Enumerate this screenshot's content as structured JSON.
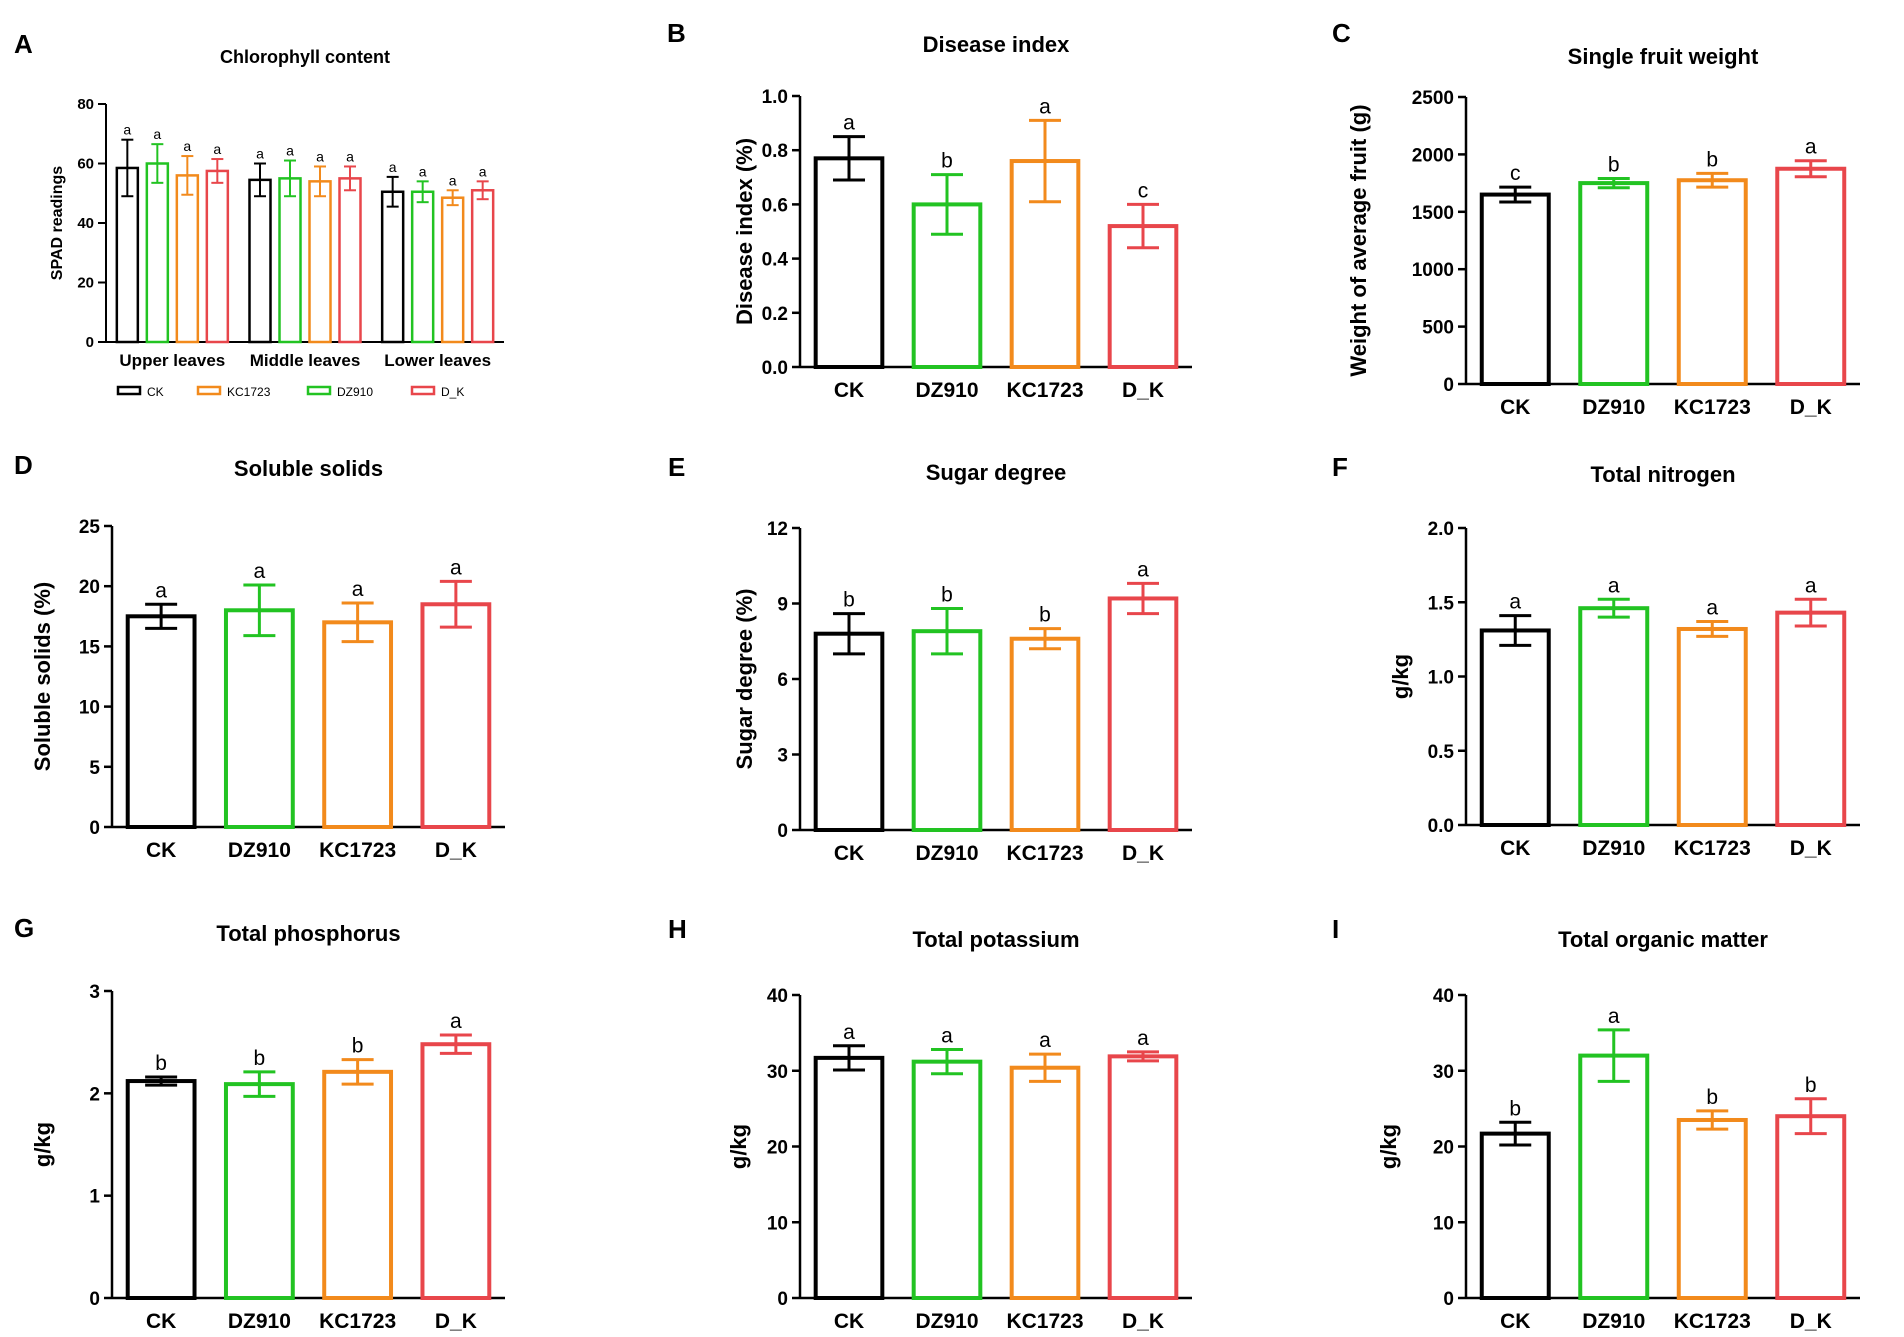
{
  "colors": {
    "CK": "#000000",
    "DZ910": "#22c322",
    "KC1723": "#f28a1c",
    "D_K": "#e8464b",
    "axis": "#000000"
  },
  "chart_data": [
    {
      "panel": "A",
      "type": "bar",
      "title": "Chlorophyll content",
      "ylabel": "SPAD readings",
      "xlabel": "",
      "ylim": [
        0,
        80
      ],
      "yticks": [
        0,
        20,
        40,
        60,
        80
      ],
      "categories": [
        "Upper leaves",
        "Middle leaves",
        "Lower leaves"
      ],
      "series": [
        {
          "name": "CK",
          "values": [
            58.5,
            54.5,
            50.5
          ],
          "errors": [
            9.5,
            5.5,
            5.0
          ],
          "letters": [
            "a",
            "a",
            "a"
          ]
        },
        {
          "name": "DZ910",
          "values": [
            60.0,
            55.0,
            50.5
          ],
          "errors": [
            6.5,
            6.0,
            3.5
          ],
          "letters": [
            "a",
            "a",
            "a"
          ]
        },
        {
          "name": "KC1723",
          "values": [
            56.0,
            54.0,
            48.5
          ],
          "errors": [
            6.5,
            5.0,
            2.5
          ],
          "letters": [
            "a",
            "a",
            "a"
          ]
        },
        {
          "name": "D_K",
          "values": [
            57.5,
            55.0,
            51.0
          ],
          "errors": [
            4.0,
            4.0,
            3.0
          ],
          "letters": [
            "a",
            "a",
            "a"
          ]
        }
      ],
      "legend": [
        "CK",
        "KC1723",
        "DZ910",
        "D_K"
      ],
      "legend_position": "bottom"
    },
    {
      "panel": "B",
      "type": "bar",
      "title": "Disease index",
      "ylabel": "Disease index (%)",
      "ylim": [
        0,
        1.0
      ],
      "yticks": [
        "0.0",
        "0.2",
        "0.4",
        "0.6",
        "0.8",
        "1.0"
      ],
      "categories": [
        "CK",
        "DZ910",
        "KC1723",
        "D_K"
      ],
      "values": [
        0.77,
        0.6,
        0.76,
        0.52
      ],
      "errors": [
        0.08,
        0.11,
        0.15,
        0.08
      ],
      "letters": [
        "a",
        "b",
        "a",
        "c"
      ]
    },
    {
      "panel": "C",
      "type": "bar",
      "title": "Single fruit weight",
      "ylabel": "Weight of average fruit (g)",
      "ylim": [
        0,
        2500
      ],
      "yticks": [
        "0",
        "500",
        "1000",
        "1500",
        "2000",
        "2500"
      ],
      "categories": [
        "CK",
        "DZ910",
        "KC1723",
        "D_K"
      ],
      "values": [
        1650,
        1750,
        1775,
        1875
      ],
      "errors": [
        65,
        40,
        60,
        70
      ],
      "letters": [
        "c",
        "b",
        "b",
        "a"
      ]
    },
    {
      "panel": "D",
      "type": "bar",
      "title": "Soluble solids",
      "ylabel": "Soluble solids (%)",
      "ylim": [
        0,
        25
      ],
      "yticks": [
        "0",
        "5",
        "10",
        "15",
        "20",
        "25"
      ],
      "categories": [
        "CK",
        "DZ910",
        "KC1723",
        "D_K"
      ],
      "values": [
        17.5,
        18.0,
        17.0,
        18.5
      ],
      "errors": [
        1.0,
        2.1,
        1.6,
        1.9
      ],
      "letters": [
        "a",
        "a",
        "a",
        "a"
      ]
    },
    {
      "panel": "E",
      "type": "bar",
      "title": "Sugar degree",
      "ylabel": "Sugar degree (%)",
      "ylim": [
        0,
        12
      ],
      "yticks": [
        "0",
        "3",
        "6",
        "9",
        "12"
      ],
      "categories": [
        "CK",
        "DZ910",
        "KC1723",
        "D_K"
      ],
      "values": [
        7.8,
        7.9,
        7.6,
        9.2
      ],
      "errors": [
        0.8,
        0.9,
        0.4,
        0.6
      ],
      "letters": [
        "b",
        "b",
        "b",
        "a"
      ]
    },
    {
      "panel": "F",
      "type": "bar",
      "title": "Total nitrogen",
      "ylabel": "g/kg",
      "ylim": [
        0,
        2.0
      ],
      "yticks": [
        "0.0",
        "0.5",
        "1.0",
        "1.5",
        "2.0"
      ],
      "categories": [
        "CK",
        "DZ910",
        "KC1723",
        "D_K"
      ],
      "values": [
        1.31,
        1.46,
        1.32,
        1.43
      ],
      "errors": [
        0.1,
        0.06,
        0.05,
        0.09
      ],
      "letters": [
        "a",
        "a",
        "a",
        "a"
      ]
    },
    {
      "panel": "G",
      "type": "bar",
      "title": "Total phosphorus",
      "ylabel": "g/kg",
      "ylim": [
        0,
        3
      ],
      "yticks": [
        "0",
        "1",
        "2",
        "3"
      ],
      "categories": [
        "CK",
        "DZ910",
        "KC1723",
        "D_K"
      ],
      "values": [
        2.12,
        2.09,
        2.21,
        2.48
      ],
      "errors": [
        0.04,
        0.12,
        0.12,
        0.09
      ],
      "letters": [
        "b",
        "b",
        "b",
        "a"
      ]
    },
    {
      "panel": "H",
      "type": "bar",
      "title": "Total potassium",
      "ylabel": "g/kg",
      "ylim": [
        0,
        40
      ],
      "yticks": [
        "0",
        "10",
        "20",
        "30",
        "40"
      ],
      "categories": [
        "CK",
        "DZ910",
        "KC1723",
        "D_K"
      ],
      "values": [
        31.7,
        31.2,
        30.4,
        31.9
      ],
      "errors": [
        1.6,
        1.6,
        1.8,
        0.6
      ],
      "letters": [
        "a",
        "a",
        "a",
        "a"
      ]
    },
    {
      "panel": "I",
      "type": "bar",
      "title": "Total organic matter",
      "ylabel": "g/kg",
      "ylim": [
        0,
        40
      ],
      "yticks": [
        "0",
        "10",
        "20",
        "30",
        "40"
      ],
      "categories": [
        "CK",
        "DZ910",
        "KC1723",
        "D_K"
      ],
      "values": [
        21.7,
        32.0,
        23.5,
        24.0
      ],
      "errors": [
        1.5,
        3.4,
        1.2,
        2.3
      ],
      "letters": [
        "b",
        "a",
        "b",
        "b"
      ]
    }
  ]
}
